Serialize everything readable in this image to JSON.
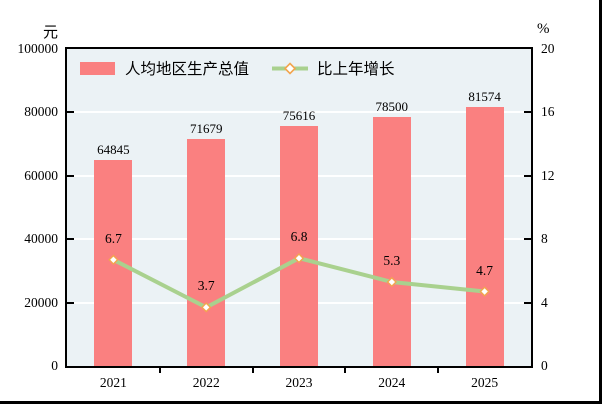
{
  "chart_data": {
    "type": "bar+line",
    "categories": [
      "2021",
      "2022",
      "2023",
      "2024",
      "2025"
    ],
    "series": [
      {
        "name": "人均地区生产总值",
        "type": "bar",
        "axis": "left",
        "values": [
          64845,
          71679,
          75616,
          78500,
          81574
        ],
        "labels": [
          "64845",
          "71679",
          "75616",
          "78500",
          "81574"
        ]
      },
      {
        "name": "比上年增长",
        "type": "line",
        "axis": "right",
        "values": [
          6.7,
          3.7,
          6.8,
          5.3,
          4.7
        ],
        "labels": [
          "6.7",
          "3.7",
          "6.8",
          "5.3",
          "4.7"
        ]
      }
    ],
    "left_axis": {
      "unit": "元",
      "min": 0,
      "max": 100000,
      "step": 20000,
      "ticks": [
        "0",
        "20000",
        "40000",
        "60000",
        "80000",
        "100000"
      ]
    },
    "right_axis": {
      "unit": "%",
      "min": 0,
      "max": 20,
      "step": 4,
      "ticks": [
        "0",
        "4",
        "8",
        "12",
        "16",
        "20"
      ]
    },
    "grid": true,
    "legend_position": "top-left-inside",
    "colors": {
      "bar": "#FA8080",
      "line": "#A9D18E",
      "marker_fill": "#FFFFFF",
      "marker_stroke": "#F2A54E",
      "plot_background": "#EBF2F5",
      "gridline": "#FFFFFF",
      "axis": "#000000"
    }
  }
}
